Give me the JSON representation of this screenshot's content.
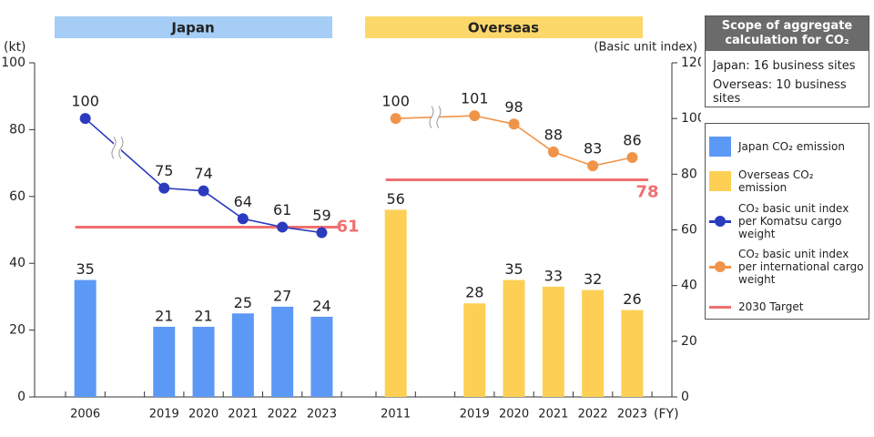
{
  "chart_data": {
    "type": "bar",
    "ylabel": "(kt)",
    "y2label": "(Basic unit index)",
    "xlabel": "(FY)",
    "ylim": [
      0,
      100
    ],
    "yticks": [
      0,
      20,
      40,
      60,
      80,
      100
    ],
    "y2lim": [
      0,
      120
    ],
    "y2ticks": [
      0,
      20,
      40,
      60,
      80,
      100,
      120
    ],
    "panels": [
      {
        "title": "Japan",
        "categories": [
          "2006",
          "2019",
          "2020",
          "2021",
          "2022",
          "2023"
        ],
        "series": [
          {
            "name": "Japan CO₂ emission",
            "type": "bar",
            "color": "#5c98f5",
            "values": [
              35,
              21,
              21,
              25,
              27,
              24
            ]
          },
          {
            "name": "CO₂ basic unit index per Komatsu cargo weight",
            "type": "line",
            "axis": "y2",
            "color": "#2a3bbd",
            "values": [
              100,
              75,
              74,
              64,
              61,
              59
            ]
          }
        ]
      },
      {
        "title": "Overseas",
        "categories": [
          "2011",
          "2019",
          "2020",
          "2021",
          "2022",
          "2023"
        ],
        "series": [
          {
            "name": "Overseas CO₂ emission",
            "type": "bar",
            "color": "#fdd055",
            "values": [
              56,
              28,
              35,
              33,
              32,
              26
            ]
          },
          {
            "name": "CO₂ basic unit index per international cargo weight",
            "type": "line",
            "axis": "y2",
            "color": "#f0944a",
            "values": [
              100,
              101,
              98,
              88,
              83,
              86
            ]
          }
        ]
      }
    ],
    "target": {
      "name": "2030 Target",
      "color": "#f07070",
      "axis": "y2",
      "values": [
        61,
        78
      ]
    },
    "scope": {
      "title": "Scope of aggregate calculation for CO₂",
      "lines": [
        "Japan: 16 business sites",
        "Overseas: 10 business sites"
      ]
    }
  }
}
